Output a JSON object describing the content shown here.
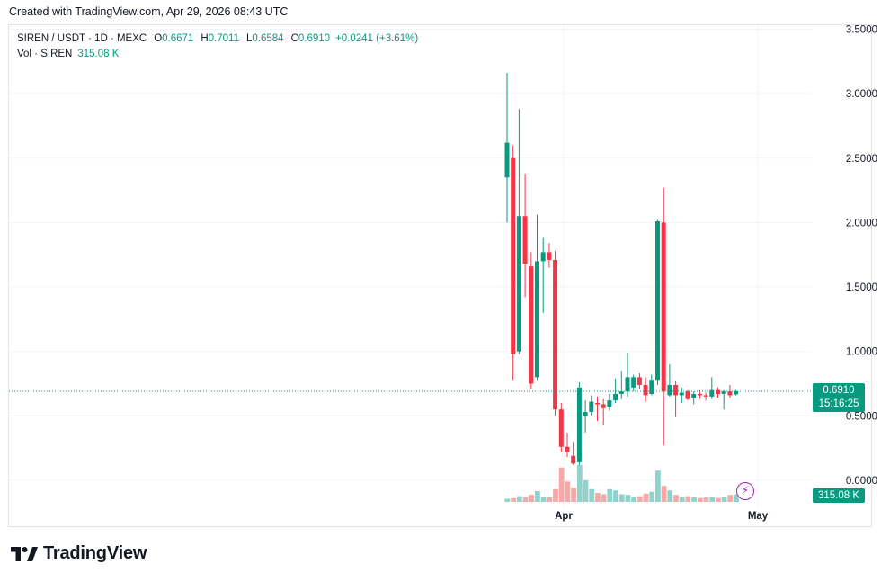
{
  "header": {
    "created": "Created with TradingView.com, Apr 29, 2026 08:43 UTC"
  },
  "legend": {
    "symbol": "SIREN / USDT · 1D · MEXC",
    "open_label": "O",
    "open": "0.6671",
    "high_label": "H",
    "high": "0.7011",
    "low_label": "L",
    "low": "0.6584",
    "close_label": "C",
    "close": "0.6910",
    "change": "+0.0241 (+3.61%)",
    "vol_label": "Vol · SIREN",
    "vol_value": "315.08 K"
  },
  "price_tag": {
    "price": "0.6910",
    "countdown": "15:16:25"
  },
  "volume_tag": "315.08 K",
  "bolt_icon": "⚡",
  "brand": {
    "name": "TradingView"
  },
  "colors": {
    "up": "#089981",
    "down": "#f23645",
    "up_vol": "#92d2cc",
    "down_vol": "#f7a9a7",
    "grid": "#f0f3fa"
  },
  "chart_data": {
    "type": "candlestick",
    "y_ticks": [
      "3.5000",
      "3.0000",
      "2.5000",
      "2.0000",
      "1.5000",
      "1.0000",
      "0.5000",
      "0.0000"
    ],
    "ylim": [
      -0.17,
      3.55
    ],
    "x_ticks": [
      "Apr",
      "May"
    ],
    "last_price": 0.691,
    "candles": [
      {
        "o": 2.35,
        "h": 3.16,
        "l": 2.0,
        "c": 2.62
      },
      {
        "o": 2.5,
        "h": 2.6,
        "l": 0.78,
        "c": 0.98
      },
      {
        "o": 1.0,
        "h": 2.88,
        "l": 0.98,
        "c": 2.05
      },
      {
        "o": 2.05,
        "h": 2.38,
        "l": 1.42,
        "c": 1.68
      },
      {
        "o": 1.66,
        "h": 1.77,
        "l": 0.71,
        "c": 0.75
      },
      {
        "o": 0.8,
        "h": 2.06,
        "l": 0.78,
        "c": 1.7
      },
      {
        "o": 1.7,
        "h": 1.88,
        "l": 1.3,
        "c": 1.77
      },
      {
        "o": 1.77,
        "h": 1.84,
        "l": 1.65,
        "c": 1.71
      },
      {
        "o": 1.71,
        "h": 1.78,
        "l": 0.5,
        "c": 0.55
      },
      {
        "o": 0.55,
        "h": 0.6,
        "l": 0.22,
        "c": 0.26
      },
      {
        "o": 0.26,
        "h": 0.37,
        "l": 0.18,
        "c": 0.22
      },
      {
        "o": 0.19,
        "h": 0.3,
        "l": 0.12,
        "c": 0.13
      },
      {
        "o": 0.14,
        "h": 0.76,
        "l": 0.12,
        "c": 0.72
      },
      {
        "o": 0.5,
        "h": 0.62,
        "l": 0.37,
        "c": 0.53
      },
      {
        "o": 0.53,
        "h": 0.66,
        "l": 0.5,
        "c": 0.61
      },
      {
        "o": 0.6,
        "h": 0.65,
        "l": 0.46,
        "c": 0.59
      },
      {
        "o": 0.59,
        "h": 0.63,
        "l": 0.43,
        "c": 0.56
      },
      {
        "o": 0.57,
        "h": 0.67,
        "l": 0.54,
        "c": 0.62
      },
      {
        "o": 0.62,
        "h": 0.79,
        "l": 0.6,
        "c": 0.67
      },
      {
        "o": 0.67,
        "h": 0.85,
        "l": 0.63,
        "c": 0.69
      },
      {
        "o": 0.69,
        "h": 0.99,
        "l": 0.65,
        "c": 0.8
      },
      {
        "o": 0.72,
        "h": 0.82,
        "l": 0.69,
        "c": 0.8
      },
      {
        "o": 0.8,
        "h": 0.83,
        "l": 0.71,
        "c": 0.74
      },
      {
        "o": 0.74,
        "h": 0.8,
        "l": 0.61,
        "c": 0.66
      },
      {
        "o": 0.67,
        "h": 0.82,
        "l": 0.66,
        "c": 0.78
      },
      {
        "o": 0.78,
        "h": 2.02,
        "l": 0.74,
        "c": 2.01
      },
      {
        "o": 2.0,
        "h": 2.27,
        "l": 0.27,
        "c": 0.69
      },
      {
        "o": 0.66,
        "h": 0.9,
        "l": 0.65,
        "c": 0.74
      },
      {
        "o": 0.74,
        "h": 0.77,
        "l": 0.49,
        "c": 0.66
      },
      {
        "o": 0.66,
        "h": 0.72,
        "l": 0.6,
        "c": 0.68
      },
      {
        "o": 0.69,
        "h": 0.7,
        "l": 0.62,
        "c": 0.63
      },
      {
        "o": 0.64,
        "h": 0.69,
        "l": 0.59,
        "c": 0.67
      },
      {
        "o": 0.67,
        "h": 0.7,
        "l": 0.63,
        "c": 0.66
      },
      {
        "o": 0.66,
        "h": 0.68,
        "l": 0.62,
        "c": 0.65
      },
      {
        "o": 0.65,
        "h": 0.8,
        "l": 0.63,
        "c": 0.7
      },
      {
        "o": 0.7,
        "h": 0.72,
        "l": 0.64,
        "c": 0.67
      },
      {
        "o": 0.67,
        "h": 0.7,
        "l": 0.55,
        "c": 0.69
      },
      {
        "o": 0.69,
        "h": 0.74,
        "l": 0.64,
        "c": 0.66
      },
      {
        "o": 0.6671,
        "h": 0.7011,
        "l": 0.6584,
        "c": 0.691
      }
    ],
    "volumes": [
      0.25,
      0.3,
      0.45,
      0.35,
      0.55,
      0.85,
      0.4,
      0.35,
      1.0,
      2.7,
      1.6,
      1.1,
      2.9,
      1.7,
      1.0,
      0.7,
      0.6,
      1.0,
      0.9,
      0.6,
      0.55,
      0.4,
      0.45,
      0.65,
      0.8,
      2.45,
      1.25,
      0.9,
      0.55,
      0.4,
      0.45,
      0.35,
      0.3,
      0.35,
      0.4,
      0.3,
      0.4,
      0.55,
      0.6
    ]
  }
}
